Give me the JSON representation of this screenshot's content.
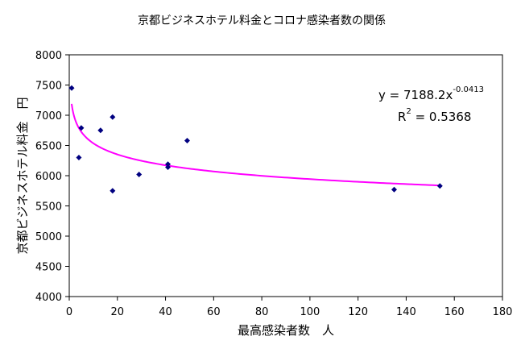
{
  "chart_data": {
    "type": "scatter",
    "title": "京都ビジネスホテル料金とコロナ感染者数の関係",
    "xlabel": "最高感染者数　人",
    "ylabel": "京都ビジネスホテル料金　円",
    "xlim": [
      0,
      180
    ],
    "ylim": [
      4000,
      8000
    ],
    "xticks": [
      0,
      20,
      40,
      60,
      80,
      100,
      120,
      140,
      160,
      180
    ],
    "yticks": [
      4000,
      4500,
      5000,
      5500,
      6000,
      6500,
      7000,
      7500,
      8000
    ],
    "grid": false,
    "legend": "none",
    "marker_color": "#000080",
    "trend_color": "#ff00ff",
    "points": [
      {
        "x": 1,
        "y": 7450
      },
      {
        "x": 4,
        "y": 6300
      },
      {
        "x": 5,
        "y": 6790
      },
      {
        "x": 13,
        "y": 6750
      },
      {
        "x": 18,
        "y": 5750
      },
      {
        "x": 18,
        "y": 6970
      },
      {
        "x": 29,
        "y": 6020
      },
      {
        "x": 41,
        "y": 6140
      },
      {
        "x": 41,
        "y": 6190
      },
      {
        "x": 49,
        "y": 6580
      },
      {
        "x": 135,
        "y": 5770
      },
      {
        "x": 154,
        "y": 5830
      }
    ],
    "trendline": {
      "type": "power",
      "coefficient": 7188.2,
      "exponent": -0.0413,
      "x_range": [
        1,
        154
      ],
      "equation_prefix": "y = 7188.2x",
      "equation_exponent": "-0.0413",
      "r2_prefix": "R",
      "r2_exponent": "2",
      "r2_value": " = 0.5368"
    }
  }
}
